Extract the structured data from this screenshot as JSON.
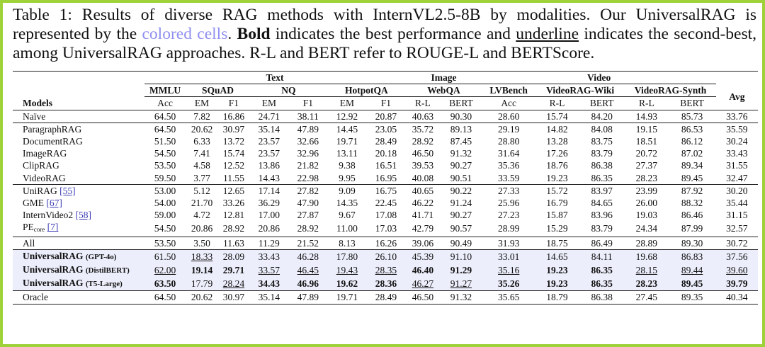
{
  "caption": {
    "lead": "Table 1: Results of diverse RAG methods with InternVL2.5-8B by modalities. Our UniversalRAG is represented by the ",
    "colored": "colored cells",
    "mid1": ". ",
    "bold_word": "Bold",
    "mid2": " indicates the best performance and ",
    "underline_word": "underline",
    "tail": " indicates the second-best, among UniversalRAG approaches. R-L and BERT refer to ROUGE-L and BERTScore."
  },
  "header": {
    "groups": {
      "text": "Text",
      "image": "Image",
      "video": "Video"
    },
    "datasets": {
      "mmlu": "MMLU",
      "squad": "SQuAD",
      "nq": "NQ",
      "hotpotqa": "HotpotQA",
      "webqa": "WebQA",
      "lvbench": "LVBench",
      "videorag_wiki": "VideoRAG-Wiki",
      "videorag_synth": "VideoRAG-Synth",
      "avg": "Avg"
    },
    "models": "Models",
    "metrics": [
      "Acc",
      "EM",
      "F1",
      "EM",
      "F1",
      "EM",
      "F1",
      "R-L",
      "BERT",
      "Acc",
      "R-L",
      "BERT",
      "R-L",
      "BERT"
    ]
  },
  "rows": [
    {
      "name": "Naïve",
      "vals": [
        "64.50",
        "7.82",
        "16.86",
        "24.71",
        "38.11",
        "12.92",
        "20.87",
        "40.63",
        "90.30",
        "28.60",
        "15.74",
        "84.20",
        "14.93",
        "85.73",
        "33.76"
      ]
    },
    {
      "name": "ParagraphRAG",
      "vals": [
        "64.50",
        "20.62",
        "30.97",
        "35.14",
        "47.89",
        "14.45",
        "23.05",
        "35.72",
        "89.13",
        "29.19",
        "14.82",
        "84.08",
        "19.15",
        "86.53",
        "35.59"
      ]
    },
    {
      "name": "DocumentRAG",
      "vals": [
        "51.50",
        "6.33",
        "13.72",
        "23.57",
        "32.66",
        "19.71",
        "28.49",
        "28.92",
        "87.45",
        "28.80",
        "13.28",
        "83.75",
        "18.51",
        "86.12",
        "30.24"
      ]
    },
    {
      "name": "ImageRAG",
      "vals": [
        "54.50",
        "7.41",
        "15.74",
        "23.57",
        "32.96",
        "13.11",
        "20.18",
        "46.50",
        "91.32",
        "31.64",
        "17.26",
        "83.79",
        "20.72",
        "87.02",
        "33.43"
      ]
    },
    {
      "name": "ClipRAG",
      "vals": [
        "53.50",
        "4.58",
        "12.52",
        "13.86",
        "21.82",
        "9.38",
        "16.51",
        "39.53",
        "90.27",
        "35.36",
        "18.76",
        "86.38",
        "27.37",
        "89.34",
        "31.55"
      ]
    },
    {
      "name": "VideoRAG",
      "vals": [
        "59.50",
        "3.77",
        "11.55",
        "14.43",
        "22.98",
        "9.95",
        "16.95",
        "40.08",
        "90.51",
        "33.59",
        "19.23",
        "86.35",
        "28.23",
        "89.45",
        "32.47"
      ]
    },
    {
      "name": "UniRAG",
      "ref": "[55]",
      "vals": [
        "53.00",
        "5.12",
        "12.65",
        "17.14",
        "27.82",
        "9.09",
        "16.75",
        "40.65",
        "90.22",
        "27.33",
        "15.72",
        "83.97",
        "23.99",
        "87.92",
        "30.20"
      ]
    },
    {
      "name": "GME",
      "ref": "[67]",
      "vals": [
        "54.00",
        "21.70",
        "33.26",
        "36.29",
        "47.90",
        "14.35",
        "22.45",
        "46.22",
        "91.24",
        "25.96",
        "16.79",
        "84.65",
        "26.00",
        "88.32",
        "35.44"
      ]
    },
    {
      "name": "InternVideo2",
      "ref": "[58]",
      "vals": [
        "59.00",
        "4.72",
        "12.81",
        "17.00",
        "27.87",
        "9.67",
        "17.08",
        "41.71",
        "90.27",
        "27.23",
        "15.87",
        "83.96",
        "19.03",
        "86.46",
        "31.15"
      ]
    },
    {
      "name": "PE",
      "sub": "core",
      "ref": "[7]",
      "vals": [
        "54.50",
        "20.86",
        "28.92",
        "20.86",
        "28.92",
        "11.00",
        "17.03",
        "42.79",
        "90.57",
        "28.99",
        "15.29",
        "83.79",
        "24.34",
        "87.99",
        "32.57"
      ]
    },
    {
      "name": "All",
      "vals": [
        "53.50",
        "3.50",
        "11.63",
        "11.29",
        "21.52",
        "8.13",
        "16.26",
        "39.06",
        "90.49",
        "31.93",
        "18.75",
        "86.49",
        "28.89",
        "89.30",
        "30.72"
      ]
    },
    {
      "name": "UniversalRAG",
      "tag": "(GPT-4o)",
      "vals": [
        "61.50",
        "18.33",
        "28.09",
        "33.43",
        "46.28",
        "17.80",
        "26.10",
        "45.39",
        "91.10",
        "33.01",
        "14.65",
        "84.11",
        "19.68",
        "86.83",
        "37.56"
      ]
    },
    {
      "name": "UniversalRAG",
      "tag": "(DistilBERT)",
      "vals": [
        "62.00",
        "19.14",
        "29.71",
        "33.57",
        "46.45",
        "19.43",
        "28.35",
        "46.40",
        "91.29",
        "35.16",
        "19.23",
        "86.35",
        "28.15",
        "89.44",
        "39.60"
      ]
    },
    {
      "name": "UniversalRAG",
      "tag": "(T5-Large)",
      "vals": [
        "63.50",
        "17.79",
        "28.24",
        "34.43",
        "46.96",
        "19.62",
        "28.36",
        "46.27",
        "91.27",
        "35.26",
        "19.23",
        "86.35",
        "28.23",
        "89.45",
        "39.79"
      ]
    },
    {
      "name": "Oracle",
      "vals": [
        "64.50",
        "20.62",
        "30.97",
        "35.14",
        "47.89",
        "19.71",
        "28.49",
        "46.50",
        "91.32",
        "35.65",
        "18.79",
        "86.38",
        "27.45",
        "89.35",
        "40.34"
      ]
    }
  ]
}
